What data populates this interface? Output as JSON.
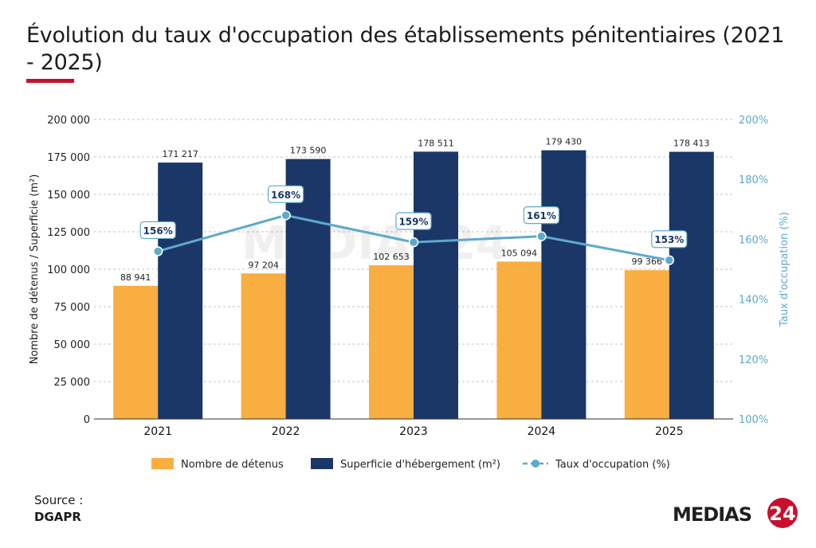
{
  "title": "Évolution du taux d'occupation des établissements pénitentiaires (2021 - 2025)",
  "source": {
    "label": "Source :",
    "value": "DGAPR"
  },
  "logo": {
    "text": "MEDIAS",
    "number": "24"
  },
  "watermark": "MEDIAS24",
  "colors": {
    "detenus": "#f9ae42",
    "superficie": "#1b3768",
    "taux": "#5ea9cc",
    "title_accent": "#c8102e"
  },
  "chart_data": {
    "type": "bar",
    "categories": [
      "2021",
      "2022",
      "2023",
      "2024",
      "2025"
    ],
    "series": [
      {
        "name": "Nombre de détenus",
        "type": "bar",
        "axis": "left",
        "values": [
          88941,
          97204,
          102653,
          105094,
          99366
        ],
        "labels": [
          "88 941",
          "97 204",
          "102 653",
          "105 094",
          "99 366"
        ]
      },
      {
        "name": "Superficie d'hébergement (m²)",
        "type": "bar",
        "axis": "left",
        "values": [
          171217,
          173590,
          178511,
          179430,
          178413
        ],
        "labels": [
          "171 217",
          "173 590",
          "178 511",
          "179 430",
          "178 413"
        ]
      },
      {
        "name": "Taux d'occupation (%)",
        "type": "line",
        "axis": "right",
        "values": [
          156,
          168,
          159,
          161,
          153
        ],
        "labels": [
          "156%",
          "168%",
          "159%",
          "161%",
          "153%"
        ]
      }
    ],
    "ylabel": "Nombre de détenus  /  Superficie (m²)",
    "ylim": [
      0,
      200000
    ],
    "yticks": [
      "0",
      "25 000",
      "50 000",
      "75 000",
      "100 000",
      "125 000",
      "150 000",
      "175 000",
      "200 000"
    ],
    "y2label": "Taux d'occupation (%)",
    "y2lim": [
      100,
      200
    ],
    "y2ticks": [
      "100%",
      "120%",
      "140%",
      "160%",
      "180%",
      "200%"
    ],
    "grid": true,
    "legend_position": "bottom"
  }
}
